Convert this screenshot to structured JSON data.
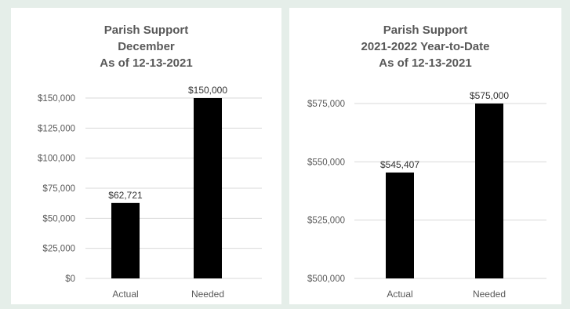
{
  "chart_data": [
    {
      "type": "bar",
      "title_lines": [
        "Parish Support",
        "December",
        "As of 12-13-2021"
      ],
      "categories": [
        "Actual",
        "Needed"
      ],
      "values": [
        62721,
        150000
      ],
      "data_labels": [
        "$62,721",
        "$150,000"
      ],
      "ylim": [
        0,
        150000
      ],
      "yticks": [
        0,
        25000,
        50000,
        75000,
        100000,
        125000,
        150000
      ],
      "ytick_labels": [
        "$0",
        "$25,000",
        "$50,000",
        "$75,000",
        "$100,000",
        "$125,000",
        "$150,000"
      ],
      "grid": true,
      "bar_color": "#000000"
    },
    {
      "type": "bar",
      "title_lines": [
        "Parish Support",
        "2021-2022 Year-to-Date",
        "As of 12-13-2021"
      ],
      "categories": [
        "Actual",
        "Needed"
      ],
      "values": [
        545407,
        575000
      ],
      "data_labels": [
        "$545,407",
        "$575,000"
      ],
      "ylim": [
        500000,
        575000
      ],
      "yticks": [
        500000,
        525000,
        550000,
        575000
      ],
      "ytick_labels": [
        "$500,000",
        "$525,000",
        "$550,000",
        "$575,000"
      ],
      "grid": true,
      "bar_color": "#000000"
    }
  ],
  "colors": {
    "background": "#e5eee9",
    "panel": "#ffffff",
    "gridline": "#d9d9d9",
    "text": "#595959"
  }
}
